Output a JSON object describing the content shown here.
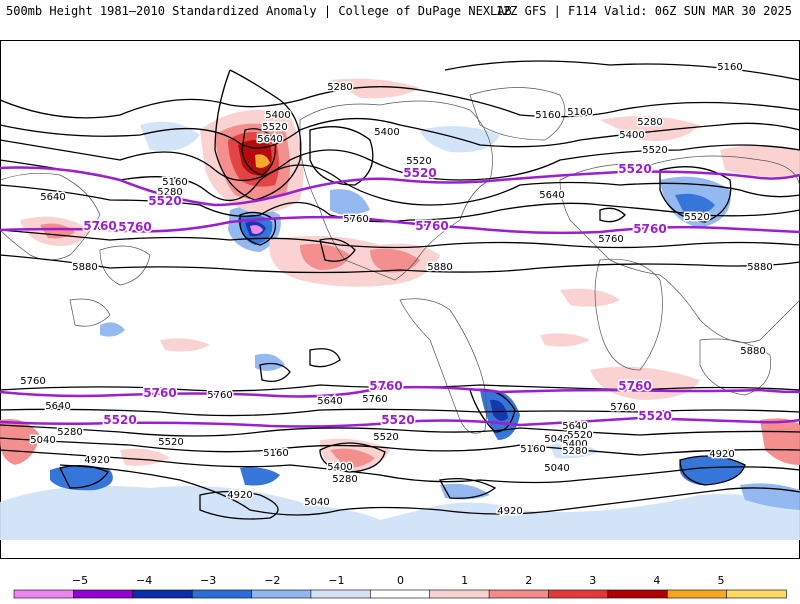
{
  "header": {
    "title_left": "500mb Height 1981–2010 Standardized Anomaly | College of DuPage NEXLAB",
    "title_right": "12Z GFS | F114 Valid: 06Z SUN MAR 30 2025"
  },
  "colorbar": {
    "ticks": [
      "−5",
      "−4",
      "−3",
      "−2",
      "−1",
      "0",
      "1",
      "2",
      "3",
      "4",
      "5"
    ],
    "colors": [
      "#ee82ee",
      "#9400d3",
      "#0a2ea8",
      "#2c6fd8",
      "#8fb6f0",
      "#d2e3f8",
      "#ffffff",
      "#fbd0d0",
      "#f48a8a",
      "#e23a3a",
      "#b00000",
      "#f5a623",
      "#ffd966"
    ]
  },
  "contours": {
    "black_labels": [
      {
        "text": "5160"
      },
      {
        "text": "5160"
      },
      {
        "text": "5160"
      },
      {
        "text": "5160"
      },
      {
        "text": "5280"
      },
      {
        "text": "5280"
      },
      {
        "text": "5280"
      },
      {
        "text": "5400"
      },
      {
        "text": "5400"
      },
      {
        "text": "5400"
      },
      {
        "text": "5520"
      },
      {
        "text": "5520"
      },
      {
        "text": "5520"
      },
      {
        "text": "5520"
      },
      {
        "text": "5640"
      },
      {
        "text": "5640"
      },
      {
        "text": "5640"
      },
      {
        "text": "5760"
      },
      {
        "text": "5760"
      },
      {
        "text": "5760"
      },
      {
        "text": "5880"
      },
      {
        "text": "5880"
      },
      {
        "text": "5880"
      },
      {
        "text": "5880"
      },
      {
        "text": "5760"
      },
      {
        "text": "5760"
      },
      {
        "text": "5760"
      },
      {
        "text": "5760"
      },
      {
        "text": "5640"
      },
      {
        "text": "5640"
      },
      {
        "text": "5640"
      },
      {
        "text": "5520"
      },
      {
        "text": "5520"
      },
      {
        "text": "5520"
      },
      {
        "text": "5040"
      },
      {
        "text": "5040"
      },
      {
        "text": "5040"
      },
      {
        "text": "5040"
      },
      {
        "text": "5400"
      },
      {
        "text": "5400"
      },
      {
        "text": "5280"
      },
      {
        "text": "5280"
      },
      {
        "text": "5280"
      },
      {
        "text": "4920"
      },
      {
        "text": "4920"
      },
      {
        "text": "4920"
      },
      {
        "text": "4920"
      },
      {
        "text": "5160"
      },
      {
        "text": "5160"
      }
    ],
    "purple_labels": [
      {
        "text": "5520"
      },
      {
        "text": "5520"
      },
      {
        "text": "5520"
      },
      {
        "text": "5760"
      },
      {
        "text": "5760"
      },
      {
        "text": "5760"
      },
      {
        "text": "5760"
      },
      {
        "text": "5760"
      },
      {
        "text": "5760"
      },
      {
        "text": "5760"
      },
      {
        "text": "5520"
      },
      {
        "text": "5520"
      },
      {
        "text": "5520"
      }
    ]
  }
}
